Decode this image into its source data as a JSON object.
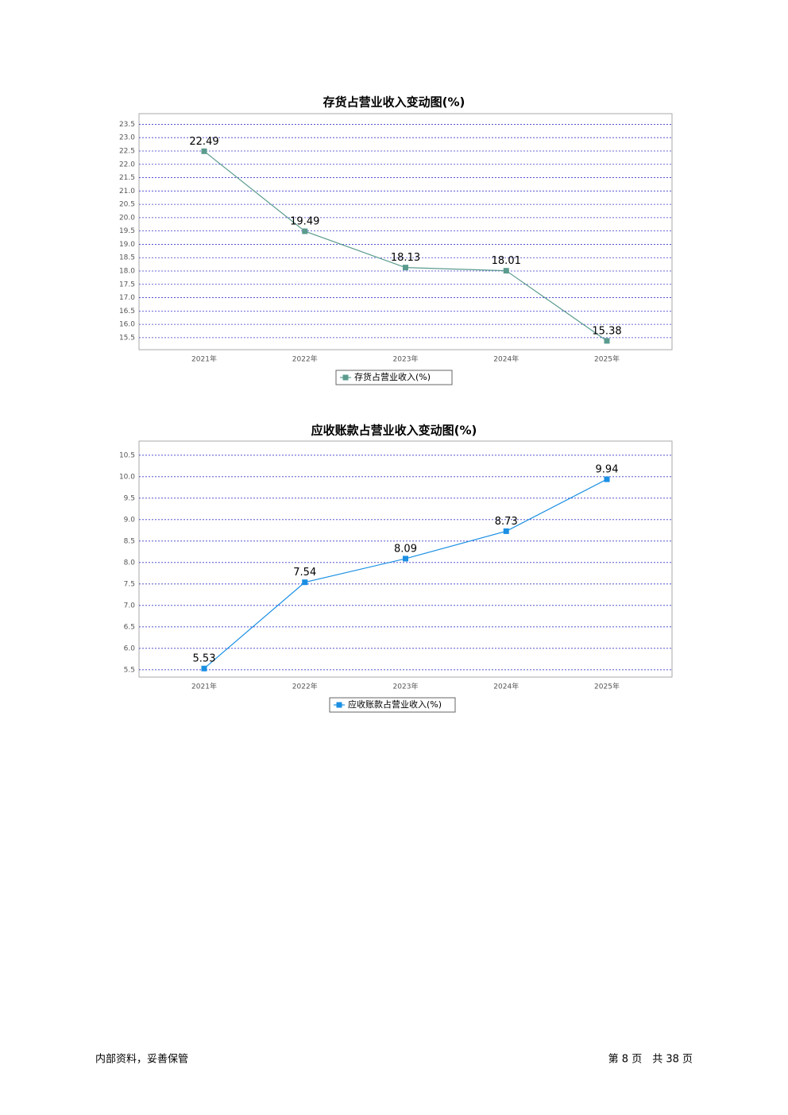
{
  "chart_data": [
    {
      "type": "line",
      "title": "存货占营业收入变动图(%)",
      "categories": [
        "2021年",
        "2022年",
        "2023年",
        "2024年",
        "2025年"
      ],
      "series": [
        {
          "name": "存货占营业收入(%)",
          "color": "#5b9b8e",
          "values": [
            22.49,
            19.49,
            18.13,
            18.01,
            15.38
          ]
        }
      ],
      "ylim": [
        15.05,
        23.9
      ],
      "yticks": [
        15.5,
        {
          "value": 16,
          "label": "16.0"
        },
        16.5,
        {
          "value": 17,
          "label": "17.0"
        },
        17.5,
        {
          "value": 18,
          "label": "18.0"
        },
        18.5,
        {
          "value": 19,
          "label": "19.0"
        },
        19.5,
        {
          "value": 20,
          "label": "20.0"
        },
        20.5,
        {
          "value": 21,
          "label": "21.0"
        },
        21.5,
        {
          "value": 22,
          "label": "22.0"
        },
        22.5,
        {
          "value": 23,
          "label": "23.0"
        },
        23.5
      ],
      "grid": true,
      "legend": "bottom"
    },
    {
      "type": "line",
      "title": "应收账款占营业收入变动图(%)",
      "categories": [
        "2021年",
        "2022年",
        "2023年",
        "2024年",
        "2025年"
      ],
      "series": [
        {
          "name": "应收账款占营业收入(%)",
          "color": "#1a8fe3",
          "values": [
            5.53,
            7.54,
            8.09,
            8.73,
            9.94
          ]
        }
      ],
      "ylim": [
        5.33,
        10.83
      ],
      "yticks": [
        5.5,
        {
          "value": 6,
          "label": "6.0"
        },
        6.5,
        {
          "value": 7,
          "label": "7.0"
        },
        7.5,
        {
          "value": 8,
          "label": "8.0"
        },
        8.5,
        {
          "value": 9,
          "label": "9.0"
        },
        9.5,
        {
          "value": 10,
          "label": "10.0"
        },
        10.5
      ],
      "grid": true,
      "legend": "bottom"
    }
  ],
  "footer": {
    "left": "内部资料，妥善保管",
    "right": "第 8 页　共 38 页"
  }
}
